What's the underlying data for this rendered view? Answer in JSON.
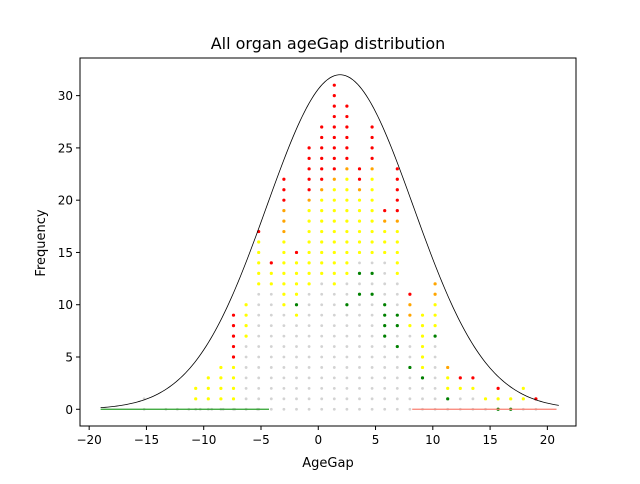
{
  "chart_data": {
    "type": "scatter",
    "title": "All organ ageGap distribution",
    "xlabel": "AgeGap",
    "ylabel": "Frequency",
    "xlim": [
      -20.8,
      22.5
    ],
    "ylim": [
      -1.6,
      33.6
    ],
    "xticks": [
      -20,
      -15,
      -10,
      -5,
      0,
      5,
      10,
      15,
      20
    ],
    "yticks": [
      0,
      5,
      10,
      15,
      20,
      25,
      30
    ],
    "grid": false,
    "legend": "none",
    "colors": {
      "background_dots": "#d3d3d3",
      "yellow": "#ffff00",
      "orange": "#ffa500",
      "red": "#ff0000",
      "green": "#008000",
      "curve": "#000000",
      "left_tail_line": "#2ca02c",
      "right_tail_line": "#fa8072"
    },
    "curve": {
      "type": "gaussian",
      "mean": 1.9,
      "sd": 6.4,
      "peak": 32,
      "x_range": [
        -19,
        21
      ]
    },
    "tail_lines": [
      {
        "color": "#2ca02c",
        "x": [
          -19,
          -4.3
        ],
        "y": [
          0,
          0
        ]
      },
      {
        "color": "#fa8072",
        "x": [
          8.2,
          20.8
        ],
        "y": [
          0,
          0
        ]
      }
    ],
    "columns": [
      {
        "x": -15.2,
        "top": 1,
        "yellow": 0,
        "orange": 0,
        "red": 0,
        "greens": []
      },
      {
        "x": -10.7,
        "top": 2,
        "yellow": 2,
        "orange": 0,
        "red": 0,
        "greens": []
      },
      {
        "x": -9.6,
        "top": 3,
        "yellow": 3,
        "orange": 0,
        "red": 0,
        "greens": []
      },
      {
        "x": -8.5,
        "top": 4,
        "yellow": 4,
        "orange": 0,
        "red": 0,
        "greens": []
      },
      {
        "x": -7.4,
        "top": 9,
        "yellow": 4,
        "orange": 0,
        "red": 5,
        "greens": []
      },
      {
        "x": -6.3,
        "top": 10,
        "yellow": 4,
        "orange": 0,
        "red": 0,
        "greens": []
      },
      {
        "x": -5.2,
        "top": 17,
        "yellow": 5,
        "orange": 0,
        "red": 1,
        "greens": []
      },
      {
        "x": -4.1,
        "top": 14,
        "yellow": 2,
        "orange": 0,
        "red": 1,
        "greens": []
      },
      {
        "x": -3.0,
        "top": 22,
        "yellow": 7,
        "orange": 3,
        "red": 3,
        "greens": []
      },
      {
        "x": -1.9,
        "top": 15,
        "yellow": 6,
        "orange": 0,
        "red": 1,
        "greens": [
          10
        ]
      },
      {
        "x": -0.8,
        "top": 25,
        "yellow": 8,
        "orange": 1,
        "red": 5,
        "greens": []
      },
      {
        "x": 0.3,
        "top": 27,
        "yellow": 8,
        "orange": 1,
        "red": 6,
        "greens": []
      },
      {
        "x": 1.4,
        "top": 31,
        "yellow": 10,
        "orange": 1,
        "red": 9,
        "greens": []
      },
      {
        "x": 2.5,
        "top": 29,
        "yellow": 10,
        "orange": 1,
        "red": 6,
        "greens": [
          10
        ]
      },
      {
        "x": 3.6,
        "top": 23,
        "yellow": 6,
        "orange": 1,
        "red": 2,
        "greens": [
          11,
          13
        ]
      },
      {
        "x": 4.7,
        "top": 27,
        "yellow": 8,
        "orange": 1,
        "red": 4,
        "greens": [
          11,
          13
        ]
      },
      {
        "x": 5.8,
        "top": 19,
        "yellow": 3,
        "orange": 1,
        "red": 1,
        "greens": [
          7,
          8,
          9,
          10
        ]
      },
      {
        "x": 6.9,
        "top": 23,
        "yellow": 5,
        "orange": 1,
        "red": 5,
        "greens": [
          6,
          8,
          9
        ]
      },
      {
        "x": 8.0,
        "top": 11,
        "yellow": 1,
        "orange": 2,
        "red": 1,
        "greens": [
          4
        ]
      },
      {
        "x": 9.1,
        "top": 9,
        "yellow": 6,
        "orange": 0,
        "red": 0,
        "greens": [
          3
        ]
      },
      {
        "x": 10.2,
        "top": 12,
        "yellow": 4,
        "orange": 2,
        "red": 0,
        "greens": [
          7
        ]
      },
      {
        "x": 11.3,
        "top": 4,
        "yellow": 2,
        "orange": 1,
        "red": 0,
        "greens": [
          1
        ]
      },
      {
        "x": 12.4,
        "top": 3,
        "yellow": 1,
        "orange": 0,
        "red": 1,
        "greens": []
      },
      {
        "x": 13.5,
        "top": 3,
        "yellow": 1,
        "orange": 0,
        "red": 1,
        "greens": []
      },
      {
        "x": 14.6,
        "top": 1,
        "yellow": 1,
        "orange": 0,
        "red": 0,
        "greens": []
      },
      {
        "x": 15.7,
        "top": 2,
        "yellow": 1,
        "orange": 0,
        "red": 1,
        "greens": [
          0
        ]
      },
      {
        "x": 16.8,
        "top": 1,
        "yellow": 1,
        "orange": 0,
        "red": 0,
        "greens": [
          0
        ]
      },
      {
        "x": 17.9,
        "top": 2,
        "yellow": 2,
        "orange": 0,
        "red": 0,
        "greens": []
      },
      {
        "x": 19.0,
        "top": 1,
        "yellow": 0,
        "orange": 0,
        "red": 1,
        "greens": []
      }
    ]
  }
}
